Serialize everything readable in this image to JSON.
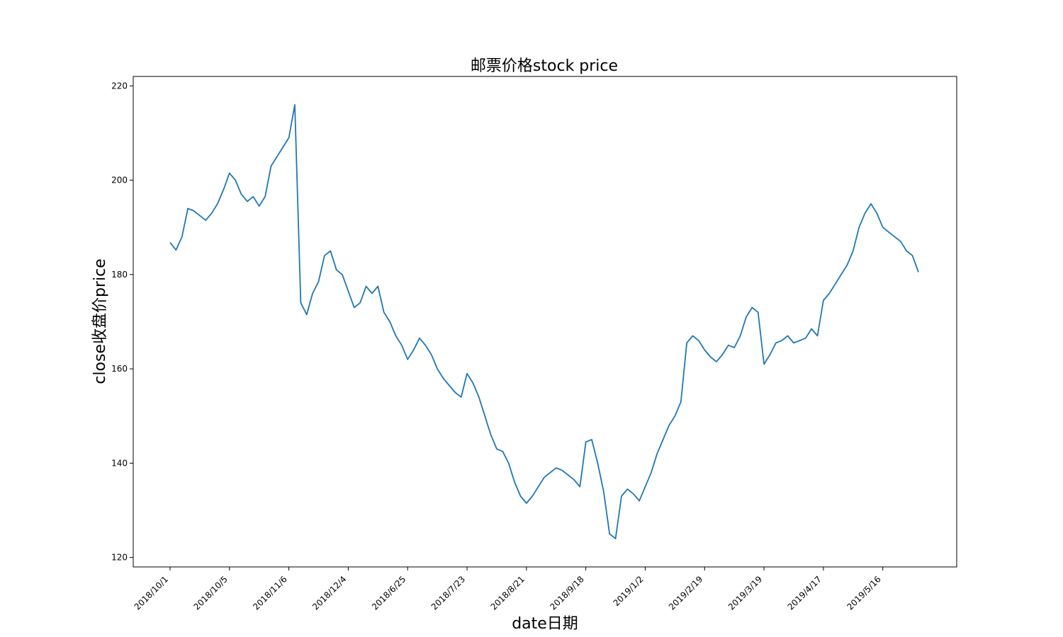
{
  "chart_data": {
    "type": "line",
    "title": "邮票价格stock price",
    "xlabel": "date日期",
    "ylabel": "close收盘价price",
    "ylim": [
      118,
      222
    ],
    "yticks": [
      120,
      140,
      160,
      180,
      200,
      220
    ],
    "grid": false,
    "legend": "none",
    "x_tick_labels": [
      "2018/10/1",
      "2018/10/5",
      "2018/11/6",
      "2018/12/4",
      "2018/6/25",
      "2018/7/23",
      "2018/8/21",
      "2018/9/18",
      "2019/1/2",
      "2019/2/19",
      "2019/3/19",
      "2019/4/17",
      "2019/5/16"
    ],
    "x_tick_index": [
      0,
      20,
      40,
      60,
      80,
      100,
      120,
      140,
      160,
      180,
      200,
      220,
      240
    ],
    "colors": {
      "line": "#1f77b4",
      "axes": "#000000",
      "background": "#ffffff"
    },
    "series": [
      {
        "x": [
          0,
          2,
          4,
          6,
          8,
          10,
          12,
          14,
          16,
          18,
          20,
          22,
          24,
          26,
          28,
          30,
          32,
          34,
          36,
          38,
          40,
          42,
          44,
          46,
          48,
          50,
          52,
          54,
          56,
          58,
          60,
          62,
          64,
          66,
          68,
          70,
          72,
          74,
          76,
          78,
          80,
          82,
          84,
          86,
          88,
          90,
          92,
          94,
          96,
          98,
          100,
          102,
          104,
          106,
          108,
          110,
          112,
          114,
          116,
          118,
          120,
          122,
          124,
          126,
          128,
          130,
          132,
          134,
          136,
          138,
          140,
          142,
          144,
          146,
          148,
          150,
          152,
          154,
          156,
          158,
          160,
          162,
          164,
          166,
          168,
          170,
          172,
          174,
          176,
          178,
          180,
          182,
          184,
          186,
          188,
          190,
          192,
          194,
          196,
          198,
          200,
          202,
          204,
          206,
          208,
          210,
          212,
          214,
          216,
          218,
          220,
          222,
          224,
          226,
          228,
          230,
          232,
          234,
          236,
          238,
          240,
          242,
          244,
          246,
          248,
          250,
          252
        ],
        "values": [
          186.8,
          185.2,
          188,
          194,
          193.5,
          192.5,
          191.5,
          193,
          195,
          198,
          201.5,
          200,
          197,
          195.5,
          196.5,
          194.5,
          196.5,
          203,
          205,
          207,
          209,
          216,
          174,
          171.5,
          176,
          178.5,
          184,
          185,
          181,
          180,
          176.5,
          173,
          174,
          177.5,
          176,
          177.5,
          172,
          170,
          167,
          165,
          162,
          164,
          166.5,
          165,
          163,
          160,
          158,
          156.5,
          155,
          154,
          159,
          157,
          154,
          150,
          146,
          143,
          142.5,
          140,
          136,
          133,
          131.5,
          133,
          135,
          137,
          138,
          139,
          138.5,
          137.5,
          136.5,
          135,
          144.5,
          145,
          140,
          134,
          125,
          124,
          133,
          134.5,
          133.5,
          132,
          135,
          138,
          142,
          145,
          148,
          150,
          153,
          165.5,
          167,
          166,
          164,
          162.5,
          161.5,
          163,
          165,
          164.5,
          167,
          171,
          173,
          172,
          161,
          163,
          165.5,
          166,
          167,
          165.5,
          166,
          166.5,
          168.5,
          167,
          174.5,
          176,
          178,
          180,
          182,
          185,
          190,
          193,
          195,
          193,
          190,
          189,
          188,
          187,
          185,
          184,
          180.5
        ]
      }
    ]
  }
}
